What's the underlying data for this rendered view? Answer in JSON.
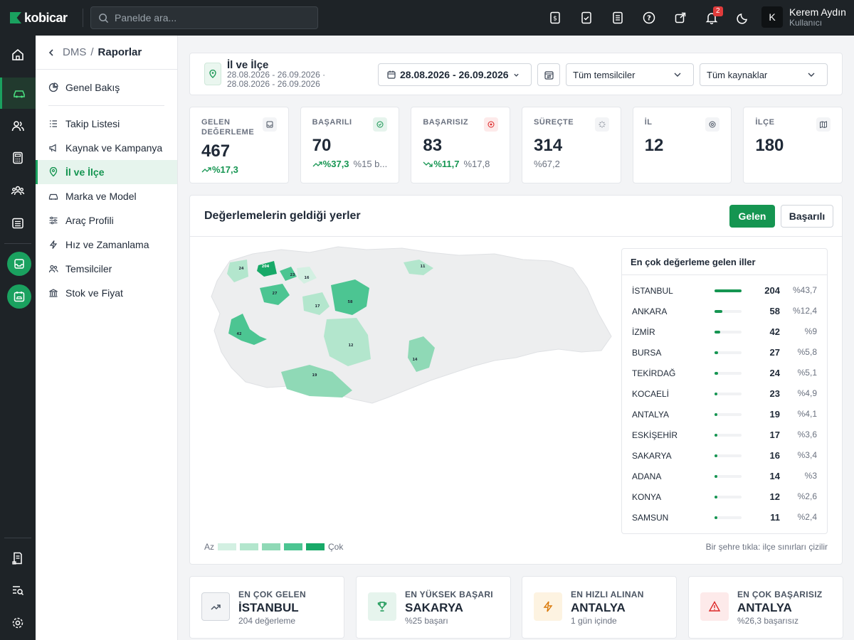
{
  "app": {
    "brand": "kobicar"
  },
  "search": {
    "placeholder": "Panelde ara..."
  },
  "notifications": {
    "count": "2"
  },
  "user": {
    "name": "Kerem Aydın",
    "role": "Kullanıcı",
    "initial": "K"
  },
  "breadcrumb": {
    "root": "DMS",
    "separator": "/",
    "current": "Raporlar"
  },
  "subnav": {
    "overview": "Genel Bakış",
    "items": [
      {
        "label": "Takip Listesi",
        "icon": "list-check-icon"
      },
      {
        "label": "Kaynak ve Kampanya",
        "icon": "megaphone-icon"
      },
      {
        "label": "İl ve İlçe",
        "icon": "map-pin-icon",
        "active": true
      },
      {
        "label": "Marka ve Model",
        "icon": "car-icon"
      },
      {
        "label": "Araç Profili",
        "icon": "sliders-icon"
      },
      {
        "label": "Hız ve Zamanlama",
        "icon": "bolt-icon"
      },
      {
        "label": "Temsilciler",
        "icon": "users-icon"
      },
      {
        "label": "Stok ve Fiyat",
        "icon": "bank-icon"
      }
    ]
  },
  "filter": {
    "title": "İl ve İlçe",
    "subtitle": "28.08.2026 - 26.09.2026 · 28.08.2026 - 26.09.2026",
    "date_range": "28.08.2026 - 26.09.2026",
    "rep_select": "Tüm temsilciler",
    "source_select": "Tüm kaynaklar"
  },
  "kpis": [
    {
      "label": "GELEN DEĞERLEME",
      "value": "467",
      "trend": "%17,3",
      "trend_dir": "up",
      "extra": ""
    },
    {
      "label": "BAŞARILI",
      "value": "70",
      "trend": "%37,3",
      "trend_dir": "up",
      "extra": "%15 b..."
    },
    {
      "label": "BAŞARISIZ",
      "value": "83",
      "trend": "%11,7",
      "trend_dir": "down",
      "extra": "%17,8"
    },
    {
      "label": "SÜREÇTE",
      "value": "314",
      "trend": "",
      "trend_dir": "",
      "extra": "%67,2"
    },
    {
      "label": "İL",
      "value": "12",
      "trend": "",
      "trend_dir": "",
      "extra": ""
    },
    {
      "label": "İLÇE",
      "value": "180",
      "trend": "",
      "trend_dir": "",
      "extra": ""
    }
  ],
  "map_section": {
    "title": "Değerlemelerin geldiği yerler",
    "btn_incoming": "Gelen",
    "btn_success": "Başarılı",
    "legend_min": "Az",
    "legend_max": "Çok",
    "legend_colors": [
      "#d3f0e2",
      "#b3e6cd",
      "#8fd9b6",
      "#4cc592",
      "#18a968"
    ],
    "hint": "Bir şehre tıkla: ilçe sınırları çizilir",
    "map_labels": [
      "24",
      "204",
      "23",
      "16",
      "11",
      "27",
      "17",
      "58",
      "42",
      "12",
      "14",
      "19"
    ]
  },
  "top_cities": {
    "title": "En çok değerleme gelen iller",
    "rows": [
      {
        "name": "İSTANBUL",
        "count": "204",
        "pct": "%43,7",
        "share": 1.0
      },
      {
        "name": "ANKARA",
        "count": "58",
        "pct": "%12,4",
        "share": 0.28
      },
      {
        "name": "İZMİR",
        "count": "42",
        "pct": "%9",
        "share": 0.21
      },
      {
        "name": "BURSA",
        "count": "27",
        "pct": "%5,8",
        "share": 0.13
      },
      {
        "name": "TEKİRDAĞ",
        "count": "24",
        "pct": "%5,1",
        "share": 0.12
      },
      {
        "name": "KOCAELİ",
        "count": "23",
        "pct": "%4,9",
        "share": 0.11
      },
      {
        "name": "ANTALYA",
        "count": "19",
        "pct": "%4,1",
        "share": 0.09
      },
      {
        "name": "ESKİŞEHİR",
        "count": "17",
        "pct": "%3,6",
        "share": 0.08
      },
      {
        "name": "SAKARYA",
        "count": "16",
        "pct": "%3,4",
        "share": 0.08
      },
      {
        "name": "ADANA",
        "count": "14",
        "pct": "%3",
        "share": 0.07
      },
      {
        "name": "KONYA",
        "count": "12",
        "pct": "%2,6",
        "share": 0.06
      },
      {
        "name": "SAMSUN",
        "count": "11",
        "pct": "%2,4",
        "share": 0.05
      }
    ]
  },
  "highlights": [
    {
      "label": "EN ÇOK GELEN",
      "value": "İSTANBUL",
      "sub": "204 değerleme",
      "icon": "trend-up-icon",
      "color": "#4b5563",
      "bg": "#f3f4f6"
    },
    {
      "label": "EN YÜKSEK BAŞARI",
      "value": "SAKARYA",
      "sub": "%25 başarı",
      "icon": "trophy-icon",
      "color": "#159551",
      "bg": "#e6f4ed"
    },
    {
      "label": "EN HIZLI ALINAN",
      "value": "ANTALYA",
      "sub": "1 gün içinde",
      "icon": "bolt-icon",
      "color": "#d97706",
      "bg": "#fdf3e1"
    },
    {
      "label": "EN ÇOK BAŞARISIZ",
      "value": "ANTALYA",
      "sub": "%26,3 başarısız",
      "icon": "warning-icon",
      "color": "#dc2626",
      "bg": "#fdeaea"
    }
  ]
}
